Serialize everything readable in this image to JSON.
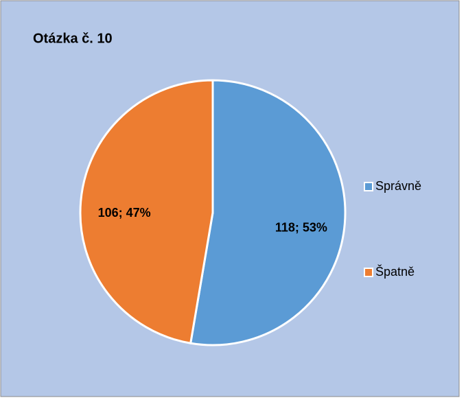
{
  "chart_data": {
    "type": "pie",
    "title": "Otázka č. 10",
    "categories": [
      "Správně",
      "Špatně"
    ],
    "values": [
      118,
      106
    ],
    "value_labels": [
      "118; 53%",
      "106; 47%"
    ],
    "colors": [
      "#5b9bd5",
      "#ed7d31"
    ],
    "legend": "right"
  }
}
